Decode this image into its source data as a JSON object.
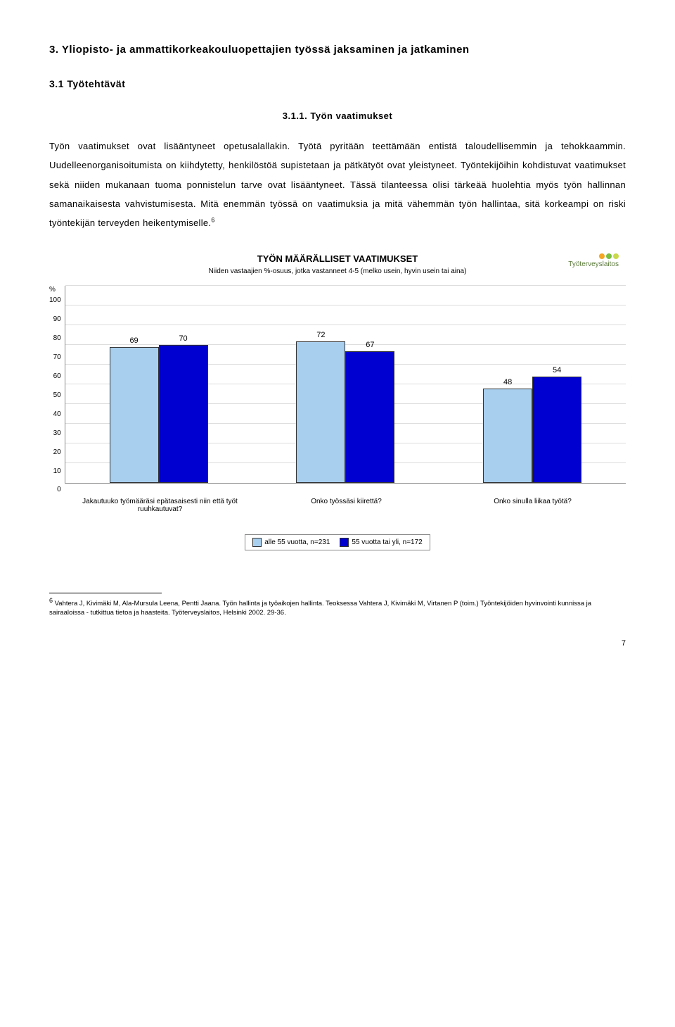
{
  "heading_main": "3. Yliopisto- ja ammattikorkeakouluopettajien työssä jaksaminen ja jatkaminen",
  "heading_sub": "3.1 Työtehtävät",
  "heading_subsub": "3.1.1. Työn vaatimukset",
  "paragraph": "Työn vaatimukset ovat lisääntyneet opetusalallakin. Työtä pyritään teettämään entistä taloudellisemmin ja tehokkaammin. Uudelleenorganisoitumista on kiihdytetty, henkilöstöä supistetaan ja pätkätyöt ovat yleistyneet. Työntekijöihin kohdistuvat vaatimukset sekä niiden mukanaan tuoma ponnistelun tarve ovat lisääntyneet. Tässä tilanteessa olisi tärkeää huolehtia myös työn hallinnan samanaikaisesta vahvistumisesta. Mitä enemmän työssä on vaatimuksia ja mitä vähemmän työn hallintaa, sitä korkeampi on riski työntekijän terveyden heikentymiselle.",
  "sup_marker": "6",
  "chart": {
    "title": "TYÖN MÄÄRÄLLISET VAATIMUKSET",
    "subtitle": "Niiden vastaajien %-osuus, jotka vastanneet 4-5 (melko usein, hyvin usein tai aina)",
    "logo_text": "Työterveyslaitos",
    "logo_colors": [
      "#f5a623",
      "#7bbf3f",
      "#c9d94a"
    ],
    "y_unit": "%",
    "y_max": 100,
    "y_ticks": [
      100,
      90,
      80,
      70,
      60,
      50,
      40,
      30,
      20,
      10,
      0
    ],
    "grid_color": "#dddddd",
    "series_colors": [
      "#a9cfef",
      "#0000d0"
    ],
    "groups": [
      {
        "label": "Jakautuuko työmääräsi epätasaisesti niin että työt ruuhkautuvat?",
        "values": [
          69,
          70
        ]
      },
      {
        "label": "Onko työssäsi kiirettä?",
        "values": [
          72,
          67
        ]
      },
      {
        "label": "Onko sinulla liikaa työtä?",
        "values": [
          48,
          54
        ]
      }
    ],
    "legend": [
      {
        "swatch": "#a9cfef",
        "label": "alle 55 vuotta, n=231"
      },
      {
        "swatch": "#0000d0",
        "label": "55 vuotta tai yli, n=172"
      }
    ]
  },
  "footnote": {
    "marker": "6",
    "text": " Vahtera J, Kivimäki M, Ala-Mursula Leena, Pentti Jaana. Työn hallinta ja työaikojen hallinta. Teoksessa Vahtera J, Kivimäki M, Virtanen P (toim.) Työntekijöiden hyvinvointi kunnissa ja sairaaloissa - tutkittua tietoa ja haasteita. Työterveyslaitos, Helsinki 2002. 29-36."
  },
  "page_number": "7"
}
